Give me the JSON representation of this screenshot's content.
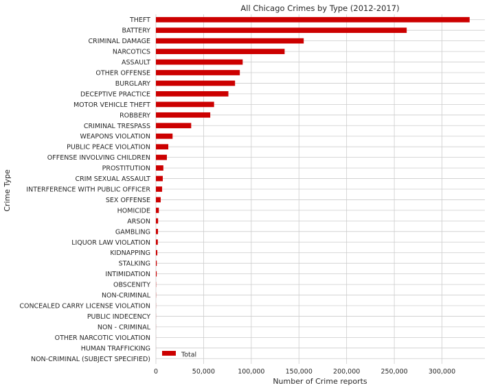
{
  "chart_data": {
    "type": "bar",
    "orientation": "horizontal",
    "title": "All Chicago Crimes by Type (2012-2017)",
    "xlabel": "Number of Crime reports",
    "ylabel": "Crime Type",
    "xlim": [
      0,
      345000
    ],
    "x_ticks": [
      0,
      50000,
      100000,
      150000,
      200000,
      250000,
      300000
    ],
    "x_tick_labels": [
      "0",
      "50,000",
      "100,000",
      "150,000",
      "200,000",
      "250,000",
      "300,000"
    ],
    "grid": true,
    "legend_position": "bottom-left",
    "bar_color": "#cc0000",
    "categories": [
      "THEFT",
      "BATTERY",
      "CRIMINAL DAMAGE",
      "NARCOTICS",
      "ASSAULT",
      "OTHER OFFENSE",
      "BURGLARY",
      "DECEPTIVE PRACTICE",
      "MOTOR VEHICLE THEFT",
      "ROBBERY",
      "CRIMINAL TRESPASS",
      "WEAPONS VIOLATION",
      "PUBLIC PEACE VIOLATION",
      "OFFENSE INVOLVING CHILDREN",
      "PROSTITUTION",
      "CRIM SEXUAL ASSAULT",
      "INTERFERENCE WITH PUBLIC OFFICER",
      "SEX OFFENSE",
      "HOMICIDE",
      "ARSON",
      "GAMBLING",
      "LIQUOR LAW VIOLATION",
      "KIDNAPPING",
      "STALKING",
      "INTIMIDATION",
      "OBSCENITY",
      "NON-CRIMINAL",
      "CONCEALED CARRY LICENSE VIOLATION",
      "PUBLIC INDECENCY",
      "NON - CRIMINAL",
      "OTHER NARCOTIC VIOLATION",
      "HUMAN TRAFFICKING",
      "NON-CRIMINAL (SUBJECT SPECIFIED)"
    ],
    "series": [
      {
        "name": "Total",
        "values": [
          329000,
          263000,
          155000,
          135000,
          91000,
          88000,
          83000,
          76000,
          61000,
          57000,
          37000,
          17500,
          13000,
          11500,
          7800,
          7200,
          6500,
          5000,
          3100,
          2300,
          2200,
          2000,
          1500,
          900,
          800,
          200,
          150,
          100,
          80,
          60,
          40,
          30,
          10
        ]
      }
    ]
  }
}
